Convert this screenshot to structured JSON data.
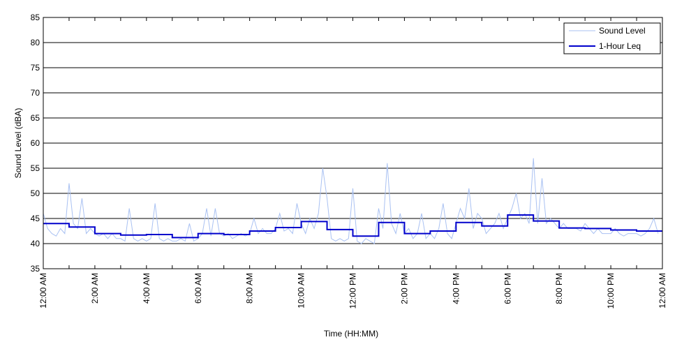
{
  "chart_data": {
    "type": "line",
    "xlabel": "Time (HH:MM)",
    "ylabel": "Sound Level (dBA)",
    "xlim": [
      0,
      1440
    ],
    "ylim": [
      35,
      85
    ],
    "yticks": [
      35,
      40,
      45,
      50,
      55,
      60,
      65,
      70,
      75,
      80,
      85
    ],
    "xticks": [
      {
        "value": 0,
        "label": "12:00 AM"
      },
      {
        "value": 120,
        "label": "2:00 AM"
      },
      {
        "value": 240,
        "label": "4:00 AM"
      },
      {
        "value": 360,
        "label": "6:00 AM"
      },
      {
        "value": 480,
        "label": "8:00 AM"
      },
      {
        "value": 600,
        "label": "10:00 AM"
      },
      {
        "value": 720,
        "label": "12:00 PM"
      },
      {
        "value": 840,
        "label": "2:00 PM"
      },
      {
        "value": 960,
        "label": "4:00 PM"
      },
      {
        "value": 1080,
        "label": "6:00 PM"
      },
      {
        "value": 1200,
        "label": "8:00 PM"
      },
      {
        "value": 1320,
        "label": "10:00 PM"
      },
      {
        "value": 1440,
        "label": "12:00 AM"
      }
    ],
    "xminor_ticks": [
      60,
      180,
      300,
      420,
      540,
      660,
      780,
      900,
      1020,
      1140,
      1260,
      1380
    ],
    "grid": "y",
    "legend": "upper right",
    "series": [
      {
        "name": "Sound Level",
        "color": "#a9c1f2",
        "style": "line",
        "x": [
          0,
          10,
          20,
          30,
          40,
          50,
          60,
          70,
          80,
          90,
          100,
          110,
          120,
          130,
          140,
          150,
          160,
          170,
          180,
          190,
          200,
          210,
          220,
          230,
          240,
          250,
          260,
          270,
          280,
          290,
          300,
          310,
          320,
          330,
          340,
          350,
          360,
          370,
          380,
          390,
          400,
          410,
          420,
          430,
          440,
          450,
          460,
          470,
          480,
          490,
          500,
          510,
          520,
          530,
          540,
          550,
          560,
          570,
          580,
          590,
          600,
          610,
          620,
          630,
          640,
          650,
          660,
          670,
          680,
          690,
          700,
          710,
          720,
          730,
          740,
          750,
          760,
          770,
          780,
          790,
          800,
          810,
          820,
          830,
          840,
          850,
          860,
          870,
          880,
          890,
          900,
          910,
          920,
          930,
          940,
          950,
          960,
          970,
          980,
          990,
          1000,
          1010,
          1020,
          1030,
          1040,
          1050,
          1060,
          1070,
          1080,
          1090,
          1100,
          1110,
          1120,
          1130,
          1140,
          1150,
          1160,
          1170,
          1180,
          1190,
          1200,
          1210,
          1220,
          1230,
          1240,
          1250,
          1260,
          1270,
          1280,
          1290,
          1300,
          1310,
          1320,
          1330,
          1340,
          1350,
          1360,
          1370,
          1380,
          1390,
          1400,
          1410,
          1420,
          1430
        ],
        "values": [
          46,
          43,
          42,
          41.5,
          43,
          42,
          52,
          44,
          43,
          49,
          42,
          43,
          42,
          41.5,
          42,
          41,
          42,
          41,
          41,
          40.5,
          47,
          41,
          40.5,
          41,
          40.5,
          41,
          48,
          41,
          40.5,
          41,
          40.5,
          40.5,
          41,
          40.5,
          44,
          40.5,
          41,
          42,
          47,
          41.5,
          47,
          42,
          41.5,
          42,
          41,
          41.5,
          42,
          41.5,
          42,
          45,
          42,
          43,
          42,
          42,
          43,
          46,
          42.5,
          43,
          42,
          48,
          44,
          42,
          45,
          43,
          46,
          55,
          49,
          41,
          40.5,
          41,
          40.5,
          41,
          51,
          40.5,
          40,
          41,
          40.5,
          40,
          47,
          43,
          56,
          44,
          42,
          46,
          42,
          43,
          41,
          42,
          46,
          41,
          42,
          41,
          43,
          48,
          42,
          41,
          44,
          47,
          45,
          51,
          43,
          46,
          45,
          42,
          43,
          44,
          46,
          43,
          45,
          47,
          50,
          45,
          46,
          44,
          57,
          44,
          53,
          44,
          45,
          44,
          43,
          44,
          43,
          43,
          43,
          42.5,
          44,
          43,
          42,
          43,
          42,
          42,
          42,
          43,
          42,
          41.5,
          42,
          42,
          42,
          41.5,
          42,
          43,
          45,
          42
        ]
      },
      {
        "name": "1-Hour Leq",
        "color": "#0000cc",
        "style": "steps",
        "x": [
          0,
          60,
          120,
          180,
          240,
          300,
          360,
          420,
          480,
          540,
          600,
          660,
          720,
          780,
          840,
          900,
          960,
          1020,
          1080,
          1140,
          1200,
          1260,
          1320,
          1380
        ],
        "values": [
          44.0,
          43.3,
          42.0,
          41.7,
          41.8,
          41.2,
          42.0,
          41.8,
          42.5,
          43.2,
          44.4,
          42.8,
          41.5,
          44.2,
          42.0,
          42.5,
          44.2,
          43.5,
          45.7,
          44.5,
          43.1,
          43.0,
          42.7,
          42.5
        ]
      }
    ]
  }
}
